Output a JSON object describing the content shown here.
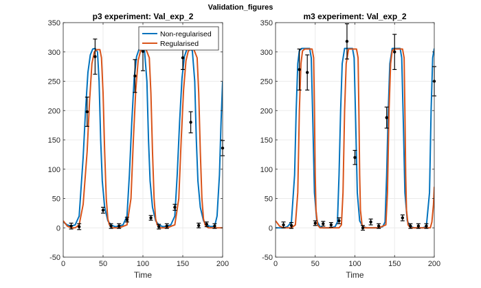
{
  "figure_title": "Validation_figures",
  "colors": {
    "non_regularised": "#0072BD",
    "regularised": "#D95319",
    "data_points": "#000000",
    "grid": "#ebebeb",
    "axes": "#262626"
  },
  "chart_data": [
    {
      "type": "line",
      "title": "p3 experiment: Val_exp_2",
      "xlabel": "Time",
      "ylabel": "",
      "xlim": [
        0,
        200
      ],
      "ylim": [
        -50,
        350
      ],
      "xticks": [
        0,
        50,
        100,
        150,
        200
      ],
      "yticks": [
        -50,
        0,
        50,
        100,
        150,
        200,
        250,
        300,
        350
      ],
      "grid": true,
      "legend": {
        "position": "top-right",
        "entries": [
          "Non-regularised",
          "Regularised"
        ]
      },
      "series": [
        {
          "name": "Non-regularised",
          "x": [
            0,
            5,
            10,
            15,
            20,
            25,
            28,
            31,
            34,
            37,
            40,
            43,
            45,
            47,
            49,
            52,
            56,
            60,
            65,
            70,
            75,
            80,
            83,
            86,
            89,
            92,
            95,
            98,
            102,
            105,
            107,
            109,
            112,
            116,
            120,
            125,
            130,
            135,
            140,
            143,
            146,
            149,
            152,
            155,
            158,
            162,
            165,
            167,
            169,
            172,
            176,
            180,
            185,
            190,
            193,
            196,
            198,
            200
          ],
          "y": [
            10,
            5,
            3,
            5,
            20,
            120,
            200,
            265,
            295,
            305,
            306,
            300,
            250,
            150,
            80,
            35,
            12,
            5,
            2,
            3,
            5,
            20,
            90,
            180,
            255,
            292,
            304,
            306,
            302,
            250,
            150,
            80,
            35,
            12,
            5,
            2,
            3,
            5,
            20,
            90,
            180,
            255,
            292,
            304,
            306,
            302,
            250,
            150,
            80,
            35,
            12,
            5,
            2,
            3,
            20,
            90,
            180,
            250
          ]
        },
        {
          "name": "Regularised",
          "x": [
            0,
            5,
            10,
            15,
            20,
            25,
            30,
            33,
            36,
            39,
            42,
            46,
            48,
            50,
            52,
            54,
            56,
            58,
            60,
            62,
            65,
            70,
            80,
            85,
            88,
            91,
            94,
            97,
            100,
            104,
            108,
            110,
            112,
            114,
            116,
            118,
            120,
            122,
            125,
            130,
            140,
            145,
            148,
            151,
            154,
            157,
            160,
            164,
            168,
            170,
            172,
            174,
            176,
            178,
            180,
            182,
            185,
            200
          ],
          "y": [
            12,
            3,
            0,
            0,
            5,
            40,
            130,
            215,
            280,
            300,
            304,
            304,
            290,
            230,
            130,
            50,
            15,
            5,
            2,
            0,
            0,
            0,
            5,
            50,
            150,
            235,
            285,
            302,
            304,
            304,
            290,
            230,
            130,
            50,
            15,
            5,
            2,
            0,
            0,
            0,
            5,
            50,
            150,
            235,
            285,
            302,
            304,
            304,
            290,
            230,
            130,
            50,
            15,
            5,
            2,
            0,
            0,
            0
          ]
        }
      ],
      "points": [
        {
          "x": 10,
          "y": 3,
          "err": 5
        },
        {
          "x": 20,
          "y": 2,
          "err": 5
        },
        {
          "x": 30,
          "y": 198,
          "err": 25
        },
        {
          "x": 40,
          "y": 292,
          "err": 30
        },
        {
          "x": 50,
          "y": 30,
          "err": 5
        },
        {
          "x": 60,
          "y": 3,
          "err": 4
        },
        {
          "x": 70,
          "y": 3,
          "err": 4
        },
        {
          "x": 80,
          "y": 14,
          "err": 4
        },
        {
          "x": 90,
          "y": 259,
          "err": 28
        },
        {
          "x": 100,
          "y": 301,
          "err": 33
        },
        {
          "x": 110,
          "y": 17,
          "err": 4
        },
        {
          "x": 120,
          "y": 2,
          "err": 4
        },
        {
          "x": 130,
          "y": 3,
          "err": 4
        },
        {
          "x": 140,
          "y": 35,
          "err": 5
        },
        {
          "x": 150,
          "y": 290,
          "err": 20
        },
        {
          "x": 160,
          "y": 180,
          "err": 18
        },
        {
          "x": 170,
          "y": 4,
          "err": 4
        },
        {
          "x": 180,
          "y": 6,
          "err": 4
        },
        {
          "x": 190,
          "y": 3,
          "err": 4
        },
        {
          "x": 200,
          "y": 136,
          "err": 13
        }
      ]
    },
    {
      "type": "line",
      "title": "m3 experiment: Val_exp_2",
      "xlabel": "Time",
      "ylabel": "",
      "xlim": [
        0,
        200
      ],
      "ylim": [
        -50,
        350
      ],
      "xticks": [
        0,
        50,
        100,
        150,
        200
      ],
      "yticks": [
        -50,
        0,
        50,
        100,
        150,
        200,
        250,
        300,
        350
      ],
      "grid": true,
      "legend": null,
      "series": [
        {
          "name": "Non-regularised",
          "x": [
            0,
            5,
            10,
            15,
            20,
            24,
            26,
            28,
            30,
            33,
            43,
            45,
            47,
            49,
            52,
            56,
            60,
            65,
            70,
            75,
            78,
            80,
            82,
            84,
            87,
            97,
            99,
            101,
            103,
            106,
            110,
            115,
            120,
            125,
            130,
            135,
            138,
            140,
            142,
            144,
            147,
            157,
            159,
            161,
            163,
            166,
            170,
            175,
            180,
            185,
            190,
            194,
            196,
            198,
            200
          ],
          "y": [
            0,
            0,
            0,
            2,
            10,
            90,
            200,
            280,
            302,
            306,
            306,
            290,
            180,
            60,
            12,
            2,
            0,
            0,
            0,
            2,
            10,
            90,
            200,
            280,
            306,
            306,
            290,
            180,
            60,
            12,
            2,
            0,
            0,
            0,
            0,
            2,
            10,
            90,
            200,
            280,
            306,
            306,
            290,
            180,
            60,
            12,
            2,
            0,
            0,
            0,
            2,
            60,
            200,
            290,
            306
          ]
        },
        {
          "name": "Regularised",
          "x": [
            0,
            5,
            10,
            15,
            20,
            25,
            28,
            30,
            32,
            34,
            37,
            46,
            48,
            49,
            50,
            51,
            53,
            56,
            60,
            70,
            80,
            83,
            85,
            87,
            89,
            92,
            102,
            104,
            105,
            106,
            107,
            109,
            112,
            115,
            120,
            130,
            139,
            141,
            143,
            145,
            147,
            150,
            160,
            162,
            163,
            164,
            165,
            167,
            170,
            175,
            180,
            190,
            195,
            197,
            199,
            200
          ],
          "y": [
            12,
            3,
            0,
            0,
            0,
            5,
            60,
            200,
            280,
            302,
            305,
            305,
            290,
            200,
            90,
            30,
            5,
            0,
            0,
            0,
            0,
            5,
            60,
            200,
            280,
            305,
            305,
            290,
            200,
            90,
            30,
            5,
            0,
            0,
            0,
            0,
            5,
            60,
            200,
            280,
            302,
            305,
            305,
            290,
            200,
            90,
            30,
            5,
            0,
            0,
            0,
            0,
            0,
            10,
            40,
            70
          ]
        }
      ],
      "points": [
        {
          "x": 10,
          "y": 5,
          "err": 5
        },
        {
          "x": 20,
          "y": 4,
          "err": 5
        },
        {
          "x": 30,
          "y": 270,
          "err": 35
        },
        {
          "x": 40,
          "y": 265,
          "err": 30
        },
        {
          "x": 50,
          "y": 8,
          "err": 4
        },
        {
          "x": 60,
          "y": 7,
          "err": 4
        },
        {
          "x": 70,
          "y": 5,
          "err": 4
        },
        {
          "x": 80,
          "y": 12,
          "err": 5
        },
        {
          "x": 90,
          "y": 318,
          "err": 30
        },
        {
          "x": 100,
          "y": 120,
          "err": 12
        },
        {
          "x": 110,
          "y": 0,
          "err": 4
        },
        {
          "x": 120,
          "y": 10,
          "err": 5
        },
        {
          "x": 130,
          "y": 3,
          "err": 4
        },
        {
          "x": 140,
          "y": 188,
          "err": 18
        },
        {
          "x": 150,
          "y": 300,
          "err": 30
        },
        {
          "x": 160,
          "y": 17,
          "err": 5
        },
        {
          "x": 170,
          "y": 3,
          "err": 4
        },
        {
          "x": 180,
          "y": 3,
          "err": 4
        },
        {
          "x": 190,
          "y": 3,
          "err": 4
        },
        {
          "x": 200,
          "y": 250,
          "err": 25
        }
      ]
    }
  ]
}
